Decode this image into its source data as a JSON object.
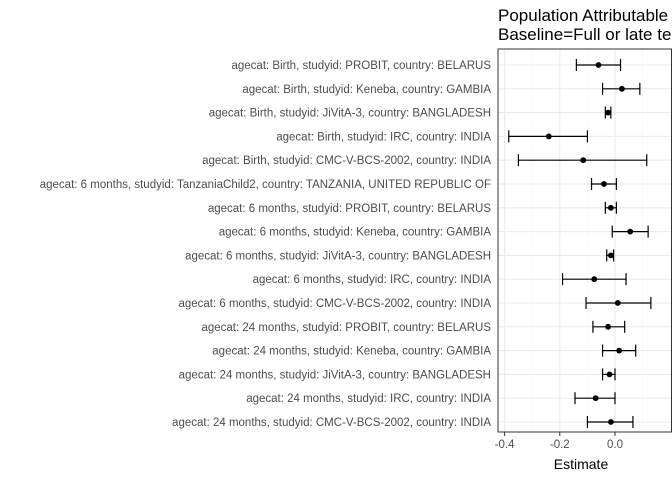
{
  "chart_data": {
    "type": "forest",
    "title_lines": [
      "Population Attributable",
      "Baseline=Full or late te"
    ],
    "xlabel": "Estimate",
    "ylabel": "",
    "xlim": [
      -0.41,
      0.145
    ],
    "x_ticks": [
      -0.4,
      -0.2,
      0.0
    ],
    "x_tick_labels": [
      "-0.4",
      "-0.2",
      "0.0"
    ],
    "grid": true,
    "legend": "none",
    "colors": {
      "point": "#000000",
      "errorbar": "#000000",
      "grid_major": "#ebebeb",
      "grid_minor": "#f5f5f5",
      "panel_border": "#333333"
    },
    "rows": [
      {
        "label": "agecat: Birth, studyid: PROBIT, country: BELARUS",
        "estimate": -0.06,
        "lower": -0.14,
        "upper": 0.02
      },
      {
        "label": "agecat: Birth, studyid: Keneba, country: GAMBIA",
        "estimate": 0.025,
        "lower": -0.045,
        "upper": 0.09
      },
      {
        "label": "agecat: Birth, studyid: JiVitA-3, country: BANGLADESH",
        "estimate": -0.025,
        "lower": -0.035,
        "upper": -0.015
      },
      {
        "label": "agecat: Birth, studyid: IRC, country: INDIA",
        "estimate": -0.24,
        "lower": -0.385,
        "upper": -0.1
      },
      {
        "label": "agecat: Birth, studyid: CMC-V-BCS-2002, country: INDIA",
        "estimate": -0.115,
        "lower": -0.35,
        "upper": 0.115
      },
      {
        "label": "agecat: 6 months, studyid: TanzaniaChild2, country: TANZANIA, UNITED REPUBLIC OF",
        "estimate": -0.04,
        "lower": -0.085,
        "upper": 0.005
      },
      {
        "label": "agecat: 6 months, studyid: PROBIT, country: BELARUS",
        "estimate": -0.015,
        "lower": -0.035,
        "upper": 0.005
      },
      {
        "label": "agecat: 6 months, studyid: Keneba, country: GAMBIA",
        "estimate": 0.055,
        "lower": -0.01,
        "upper": 0.12
      },
      {
        "label": "agecat: 6 months, studyid: JiVitA-3, country: BANGLADESH",
        "estimate": -0.015,
        "lower": -0.03,
        "upper": -0.005
      },
      {
        "label": "agecat: 6 months, studyid: IRC, country: INDIA",
        "estimate": -0.075,
        "lower": -0.19,
        "upper": 0.04
      },
      {
        "label": "agecat: 6 months, studyid: CMC-V-BCS-2002, country: INDIA",
        "estimate": 0.01,
        "lower": -0.105,
        "upper": 0.13
      },
      {
        "label": "agecat: 24 months, studyid: PROBIT, country: BELARUS",
        "estimate": -0.025,
        "lower": -0.08,
        "upper": 0.035
      },
      {
        "label": "agecat: 24 months, studyid: Keneba, country: GAMBIA",
        "estimate": 0.015,
        "lower": -0.045,
        "upper": 0.075
      },
      {
        "label": "agecat: 24 months, studyid: JiVitA-3, country: BANGLADESH",
        "estimate": -0.02,
        "lower": -0.045,
        "upper": 0.0
      },
      {
        "label": "agecat: 24 months, studyid: IRC, country: INDIA",
        "estimate": -0.07,
        "lower": -0.145,
        "upper": 0.0
      },
      {
        "label": "agecat: 24 months, studyid: CMC-V-BCS-2002, country: INDIA",
        "estimate": -0.015,
        "lower": -0.1,
        "upper": 0.065
      }
    ]
  }
}
